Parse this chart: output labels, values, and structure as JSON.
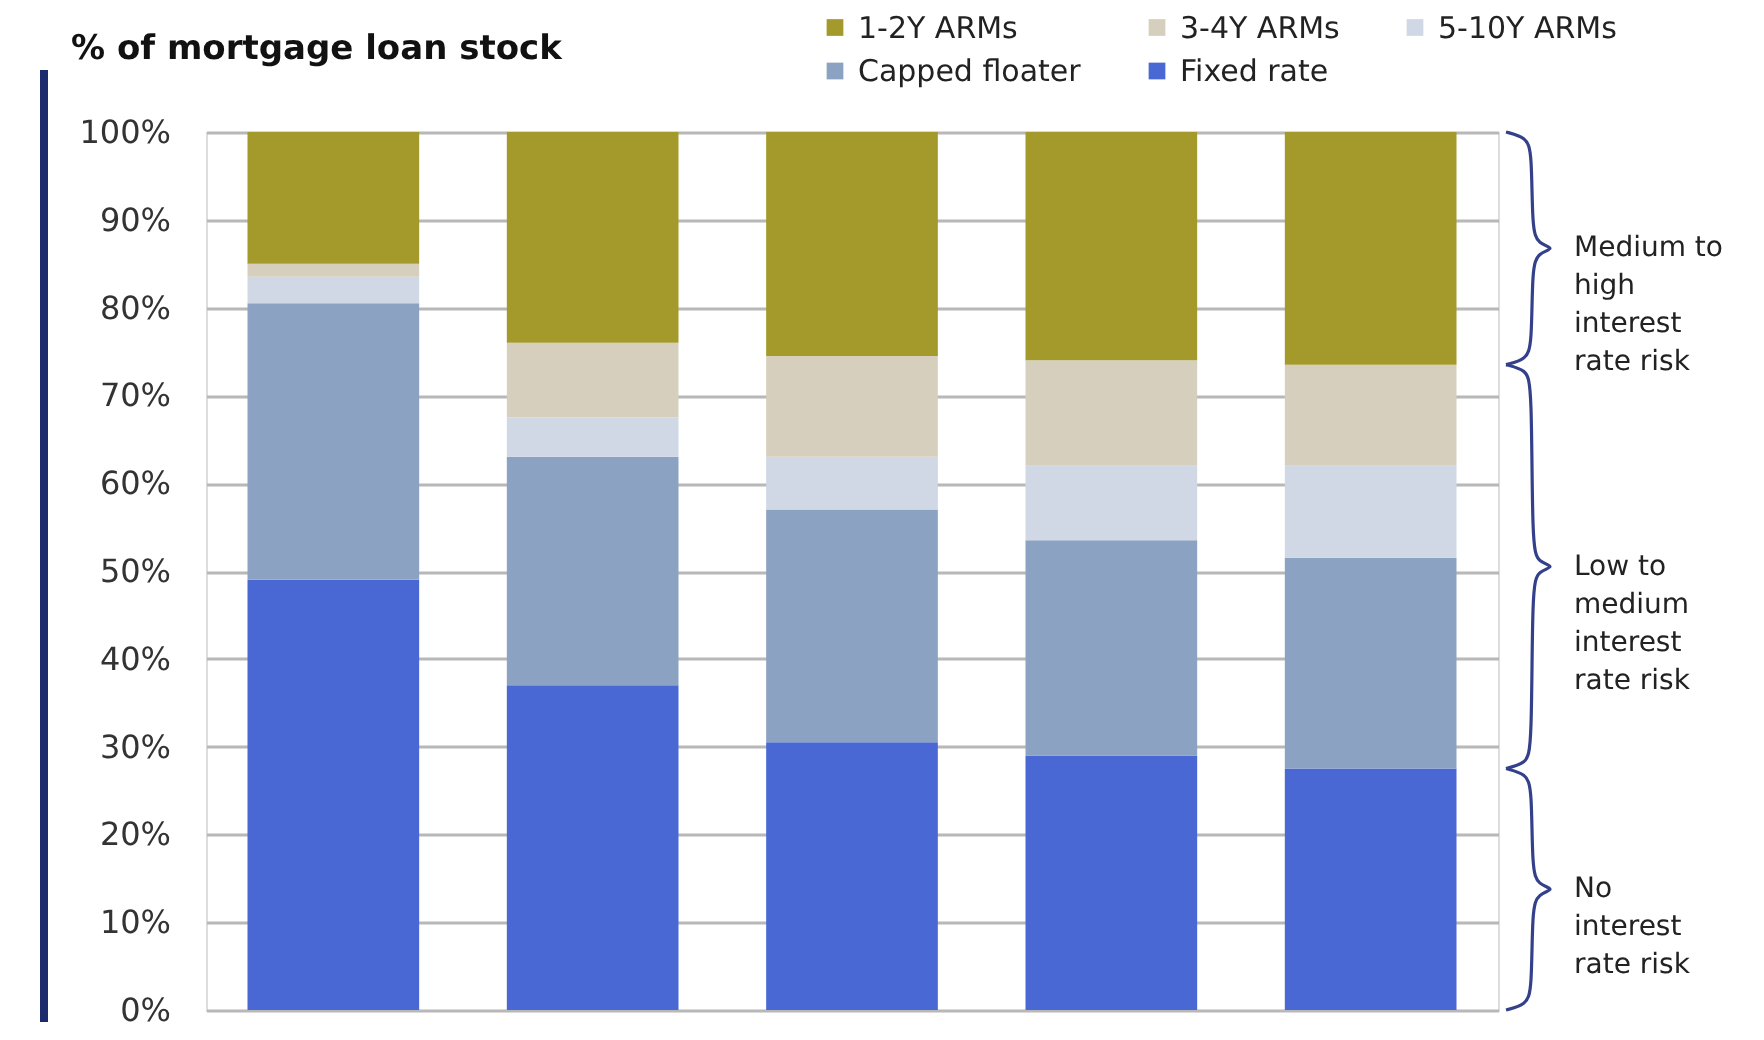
{
  "chart_data": {
    "type": "bar",
    "ylabel": "% of mortgage loan stock",
    "categories": [
      null,
      null,
      null,
      null,
      null
    ],
    "stacked": true,
    "series": [
      {
        "name": "Fixed rate",
        "color": "#4a68d4",
        "values": [
          49,
          37,
          30.5,
          29,
          27.5
        ]
      },
      {
        "name": "Capped floater",
        "color": "#8ca2c2",
        "values": [
          31.5,
          26,
          26.5,
          24.5,
          24
        ]
      },
      {
        "name": "5-10Y ARMs",
        "color": "#d0d8e5",
        "values": [
          3,
          4.5,
          6,
          8.5,
          10.5
        ]
      },
      {
        "name": "3-4Y ARMs",
        "color": "#d6cfbd",
        "values": [
          1.5,
          8.5,
          11.5,
          12,
          11.5
        ]
      },
      {
        "name": "1-2Y ARMs",
        "color": "#a39a2b",
        "values": [
          15,
          24,
          25.5,
          26,
          26.5
        ]
      }
    ],
    "ylim": [
      0,
      100
    ],
    "yticks": [
      {
        "value": 0,
        "label": "0%"
      },
      {
        "value": 10,
        "label": "10%"
      },
      {
        "value": 20,
        "label": "20%"
      },
      {
        "value": 30,
        "label": "30%"
      },
      {
        "value": 40,
        "label": "40%"
      },
      {
        "value": 50,
        "label": "50%"
      },
      {
        "value": 60,
        "label": "60%"
      },
      {
        "value": 70,
        "label": "70%"
      },
      {
        "value": 80,
        "label": "80%"
      },
      {
        "value": 90,
        "label": "90%"
      },
      {
        "value": 100,
        "label": "100%"
      }
    ],
    "grid": "y",
    "legend": "top right",
    "tick_labels": "y",
    "annotations": [
      "Medium to high interest rate risk",
      "Low to medium interest rate risk",
      "No interest rate risk"
    ]
  }
}
